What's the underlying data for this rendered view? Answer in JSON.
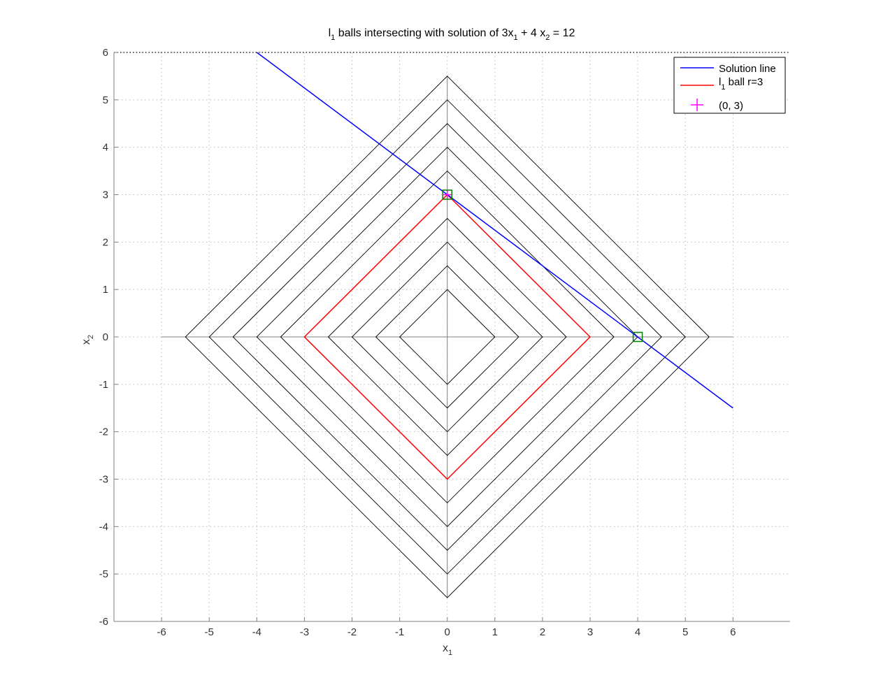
{
  "chart_data": {
    "type": "line",
    "title": {
      "main": "l",
      "sub": "1",
      "rest": " balls intersecting with solution of 3x",
      "sub2": "1",
      "rest2": " + 4 x",
      "sub3": "2",
      "rest3": " = 12"
    },
    "xlabel": {
      "main": "x",
      "sub": "1"
    },
    "ylabel": {
      "main": "x",
      "sub": "2"
    },
    "xlim": [
      -7,
      7.2
    ],
    "ylim": [
      -6,
      6
    ],
    "xticks": [
      -6,
      -5,
      -4,
      -3,
      -2,
      -1,
      0,
      1,
      2,
      3,
      4,
      5,
      6
    ],
    "yticks": [
      -6,
      -5,
      -4,
      -3,
      -2,
      -1,
      0,
      1,
      2,
      3,
      4,
      5,
      6
    ],
    "grid": true,
    "legend_position": "top-right",
    "l1_ball_radii": [
      1,
      1.5,
      2,
      2.5,
      3,
      3.5,
      4,
      4.5,
      5,
      5.5
    ],
    "highlight_radius": 3,
    "axis_segments": {
      "x_range": [
        -6,
        6
      ],
      "y_range": [
        -5.5,
        5.5
      ]
    },
    "solution_line": {
      "name": "Solution line",
      "x": [
        -4,
        6
      ],
      "y": [
        6,
        -1.5
      ],
      "color": "#0000ff"
    },
    "series": [
      {
        "name": "Solution line",
        "color": "#0000ff",
        "marker": "line"
      },
      {
        "name": "l",
        "name_sub": "1",
        "name_rest": " ball r=3",
        "color": "#ff0000",
        "marker": "line"
      },
      {
        "name": "(0, 3)",
        "color": "#ff00ff",
        "marker": "plus"
      }
    ],
    "points": {
      "plus_point": {
        "x": 0,
        "y": 3,
        "color": "#ff00ff"
      },
      "square_markers": [
        {
          "x": 0,
          "y": 3,
          "color": "#008000"
        },
        {
          "x": 4,
          "y": 0,
          "color": "#008000"
        }
      ]
    },
    "colors": {
      "ball": "#000000",
      "highlight_ball": "#ff0000",
      "grid": "#bbbbbb",
      "axis": "#808080"
    }
  }
}
